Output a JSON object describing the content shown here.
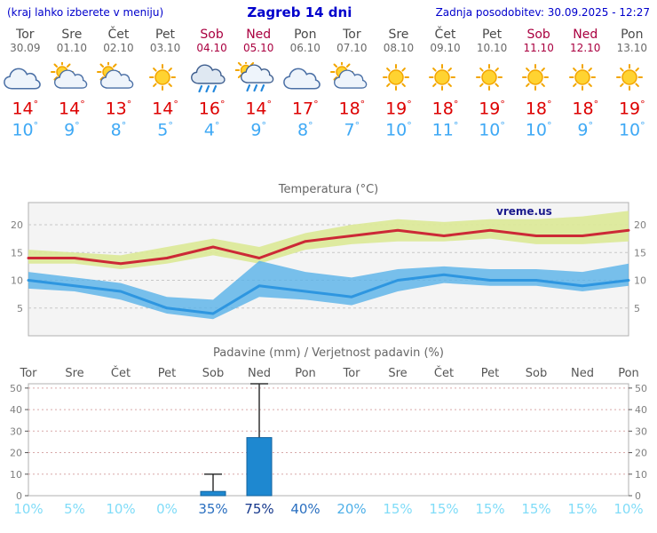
{
  "header": {
    "note": "(kraj lahko izberete v meniju)",
    "title": "Zagreb 14 dni",
    "updated": "Zadnja posodobitev: 30.09.2025 - 12:27"
  },
  "symbols": {
    "degree": "°",
    "percent": "%"
  },
  "colors": {
    "header_blue": "#0000cc",
    "weekend_red": "#aa0040",
    "day_gray": "#4a4a4a",
    "date_gray": "#6a6a6a",
    "temp_max_text": "#dd0000",
    "temp_min_text": "#3fa9f5",
    "temp_max_line": "#cc2936",
    "temp_min_line": "#2e96e0",
    "max_band": "#dce996",
    "min_band": "#57b1e8",
    "plot_bg": "#f4f4f4",
    "plot_border": "#b0b0b0",
    "temp_grid": "#c8c8c8",
    "precip_grid": "#d8a8a8",
    "bar_fill": "#1e88d0",
    "bar_stroke": "#11629e",
    "whisker": "#333333",
    "prob_high": "#15388c",
    "prob_mid": "#2a6fc0",
    "prob_low": "#4fb0e8",
    "prob_minimal": "#80dcf8"
  },
  "days": [
    {
      "name": "Tor",
      "date": "30.09",
      "weekend": false,
      "icon": "cloudy",
      "tmax": 14,
      "tmin": 10
    },
    {
      "name": "Sre",
      "date": "01.10",
      "weekend": false,
      "icon": "partly-cloudy",
      "tmax": 14,
      "tmin": 9
    },
    {
      "name": "Čet",
      "date": "02.10",
      "weekend": false,
      "icon": "partly-cloudy",
      "tmax": 13,
      "tmin": 8
    },
    {
      "name": "Pet",
      "date": "03.10",
      "weekend": false,
      "icon": "sunny",
      "tmax": 14,
      "tmin": 5
    },
    {
      "name": "Sob",
      "date": "04.10",
      "weekend": true,
      "icon": "rain",
      "tmax": 16,
      "tmin": 4
    },
    {
      "name": "Ned",
      "date": "05.10",
      "weekend": true,
      "icon": "sun-rain",
      "tmax": 14,
      "tmin": 9
    },
    {
      "name": "Pon",
      "date": "06.10",
      "weekend": false,
      "icon": "cloudy",
      "tmax": 17,
      "tmin": 8
    },
    {
      "name": "Tor",
      "date": "07.10",
      "weekend": false,
      "icon": "partly-cloudy",
      "tmax": 18,
      "tmin": 7
    },
    {
      "name": "Sre",
      "date": "08.10",
      "weekend": false,
      "icon": "sunny",
      "tmax": 19,
      "tmin": 10
    },
    {
      "name": "Čet",
      "date": "09.10",
      "weekend": false,
      "icon": "sunny",
      "tmax": 18,
      "tmin": 11
    },
    {
      "name": "Pet",
      "date": "10.10",
      "weekend": false,
      "icon": "sunny",
      "tmax": 19,
      "tmin": 10
    },
    {
      "name": "Sob",
      "date": "11.10",
      "weekend": true,
      "icon": "sunny",
      "tmax": 18,
      "tmin": 10
    },
    {
      "name": "Ned",
      "date": "12.10",
      "weekend": true,
      "icon": "sunny",
      "tmax": 18,
      "tmin": 9
    },
    {
      "name": "Pon",
      "date": "13.10",
      "weekend": false,
      "icon": "sunny",
      "tmax": 19,
      "tmin": 10
    }
  ],
  "chart_data": [
    {
      "type": "line",
      "title": "Temperatura (°C)",
      "watermark": "vreme.us",
      "categories": [
        "Tor",
        "Sre",
        "Čet",
        "Pet",
        "Sob",
        "Ned",
        "Pon",
        "Tor",
        "Sre",
        "Čet",
        "Pet",
        "Sob",
        "Ned",
        "Pon"
      ],
      "ylim": [
        0,
        24
      ],
      "yticks": [
        5,
        10,
        15,
        20
      ],
      "series": [
        {
          "name": "max",
          "values": [
            14,
            14,
            13,
            14,
            16,
            14,
            17,
            18,
            19,
            18,
            19,
            18,
            18,
            19
          ]
        },
        {
          "name": "min",
          "values": [
            10,
            9,
            8,
            5,
            4,
            9,
            8,
            7,
            10,
            11,
            10,
            10,
            9,
            10
          ]
        },
        {
          "name": "max_band_upper",
          "values": [
            15.5,
            15,
            14.5,
            16,
            17.5,
            16,
            18.5,
            20,
            21,
            20.5,
            21,
            21,
            21.5,
            22.5
          ]
        },
        {
          "name": "max_band_lower",
          "values": [
            13,
            13,
            12,
            13,
            14.5,
            13,
            15.5,
            16.5,
            17,
            17,
            17.5,
            16.5,
            16.5,
            17
          ]
        },
        {
          "name": "min_band_upper",
          "values": [
            11.5,
            10.5,
            9.5,
            7,
            6.5,
            13.5,
            11.5,
            10.5,
            12,
            12.5,
            12,
            12,
            11.5,
            13
          ]
        },
        {
          "name": "min_band_lower",
          "values": [
            8.5,
            8,
            6.5,
            4,
            3,
            7,
            6.5,
            5.5,
            8,
            9.5,
            9,
            9,
            8,
            9
          ]
        }
      ]
    },
    {
      "type": "bar",
      "title": "Padavine (mm) / Verjetnost padavin (%)",
      "categories": [
        "Tor",
        "Sre",
        "Čet",
        "Pet",
        "Sob",
        "Ned",
        "Pon",
        "Tor",
        "Sre",
        "Čet",
        "Pet",
        "Sob",
        "Ned",
        "Pon"
      ],
      "weekend_flags": [
        false,
        false,
        false,
        false,
        true,
        true,
        false,
        false,
        false,
        false,
        false,
        true,
        true,
        false
      ],
      "ylim": [
        0,
        52
      ],
      "yticks": [
        0,
        10,
        20,
        30,
        40,
        50
      ],
      "precip_mm": [
        0,
        0,
        0,
        0,
        2,
        27,
        0,
        0,
        0,
        0,
        0,
        0,
        0,
        0
      ],
      "precip_max_mm": [
        0,
        0,
        0,
        0,
        10,
        52,
        0,
        0,
        0,
        0,
        0,
        0,
        0,
        0
      ],
      "probability_pct": [
        10,
        5,
        10,
        0,
        35,
        75,
        40,
        20,
        15,
        15,
        15,
        15,
        15,
        10
      ]
    }
  ]
}
